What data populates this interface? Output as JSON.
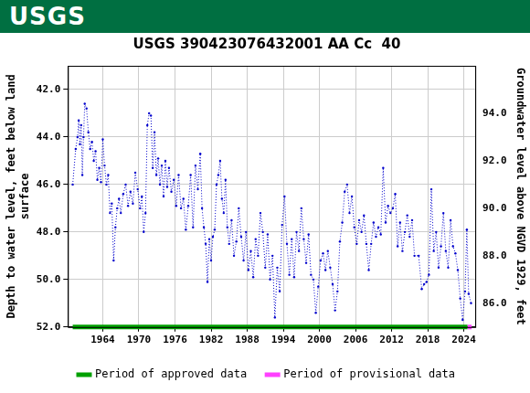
{
  "header": {
    "text": "USGS"
  },
  "chart_data": {
    "type": "line",
    "title": "USGS 390423076432001 AA Cc  40",
    "ylabel": [
      "Depth to water level, feet below land",
      "surface"
    ],
    "y2label": "Groundwater level above NGVD 1929, feet",
    "xlim": [
      1958.2,
      2025.9
    ],
    "xticks": [
      1964,
      1970,
      1976,
      1982,
      1988,
      1994,
      2000,
      2006,
      2012,
      2018,
      2024
    ],
    "ylim": [
      52,
      41
    ],
    "yticks": [
      {
        "value": 42,
        "label": "42.0"
      },
      {
        "value": 44,
        "label": "44.0"
      },
      {
        "value": 46,
        "label": "46.0"
      },
      {
        "value": 48,
        "label": "48.0"
      },
      {
        "value": 50,
        "label": "50.0"
      },
      {
        "value": 52,
        "label": "52.0"
      }
    ],
    "y2lim": [
      85,
      96
    ],
    "y2ticks": [
      {
        "value": 86,
        "label": "86.0"
      },
      {
        "value": 88,
        "label": "88.0"
      },
      {
        "value": 90,
        "label": "90.0"
      },
      {
        "value": 92,
        "label": "92.0"
      },
      {
        "value": 94,
        "label": "94.0"
      }
    ],
    "grid": true,
    "legend": "bottom",
    "series": [
      {
        "color": "#0000cc",
        "marker": "point",
        "line_style": "dotted",
        "x": [
          1959.0,
          1959.5,
          1959.8,
          1960.0,
          1960.2,
          1960.4,
          1960.6,
          1960.8,
          1961.0,
          1961.3,
          1961.6,
          1961.9,
          1962.2,
          1962.5,
          1962.8,
          1963.1,
          1963.4,
          1963.7,
          1964.0,
          1964.3,
          1964.6,
          1964.9,
          1965.2,
          1965.5,
          1965.8,
          1966.1,
          1966.4,
          1966.7,
          1967.0,
          1967.4,
          1967.8,
          1968.2,
          1968.6,
          1969.0,
          1969.4,
          1969.8,
          1970.2,
          1970.5,
          1970.8,
          1971.1,
          1971.4,
          1971.7,
          1972.0,
          1972.3,
          1972.6,
          1972.9,
          1973.2,
          1973.5,
          1973.8,
          1974.1,
          1974.4,
          1974.7,
          1975.0,
          1975.4,
          1975.8,
          1976.2,
          1976.6,
          1977.0,
          1977.4,
          1977.8,
          1978.2,
          1978.6,
          1979.0,
          1979.4,
          1979.8,
          1980.2,
          1980.5,
          1980.8,
          1981.1,
          1981.4,
          1981.7,
          1982.0,
          1982.3,
          1982.6,
          1982.9,
          1983.2,
          1983.5,
          1983.8,
          1984.1,
          1984.4,
          1984.7,
          1985.0,
          1985.4,
          1985.8,
          1986.2,
          1986.6,
          1987.0,
          1987.4,
          1987.8,
          1988.2,
          1988.6,
          1989.0,
          1989.4,
          1989.8,
          1990.2,
          1990.6,
          1991.0,
          1991.4,
          1991.8,
          1992.2,
          1992.6,
          1993.0,
          1993.4,
          1993.8,
          1994.2,
          1994.6,
          1995.0,
          1995.4,
          1995.8,
          1996.2,
          1996.6,
          1997.0,
          1997.4,
          1997.8,
          1998.2,
          1998.6,
          1999.0,
          1999.4,
          1999.8,
          2000.2,
          2000.6,
          2001.0,
          2001.4,
          2001.8,
          2002.2,
          2002.6,
          2003.0,
          2003.4,
          2003.8,
          2004.2,
          2004.6,
          2005.0,
          2005.4,
          2005.8,
          2006.2,
          2006.6,
          2007.0,
          2007.4,
          2007.8,
          2008.2,
          2008.6,
          2009.0,
          2009.4,
          2009.8,
          2010.2,
          2010.6,
          2011.0,
          2011.4,
          2011.8,
          2012.2,
          2012.6,
          2013.0,
          2013.4,
          2013.8,
          2014.2,
          2014.6,
          2015.0,
          2015.4,
          2015.8,
          2016.5,
          2017.0,
          2017.4,
          2017.8,
          2018.2,
          2018.6,
          2019.0,
          2019.4,
          2019.8,
          2020.2,
          2020.6,
          2021.0,
          2021.4,
          2021.8,
          2022.2,
          2022.6,
          2023.0,
          2023.4,
          2023.8,
          2024.2,
          2024.5,
          2024.8,
          2025.2
        ],
        "values": [
          46.0,
          44.5,
          44.0,
          43.3,
          44.3,
          43.5,
          45.6,
          44.0,
          42.6,
          42.8,
          43.8,
          44.5,
          44.2,
          45.0,
          44.6,
          45.8,
          45.3,
          45.9,
          44.1,
          45.2,
          46.0,
          45.6,
          47.2,
          46.8,
          49.2,
          47.8,
          47.0,
          46.6,
          47.2,
          46.4,
          46.0,
          46.9,
          46.3,
          46.8,
          45.5,
          46.2,
          47.0,
          46.5,
          48.0,
          47.2,
          43.5,
          43.0,
          43.1,
          45.3,
          43.8,
          45.6,
          44.9,
          46.0,
          45.2,
          46.5,
          45.0,
          46.1,
          45.3,
          46.3,
          45.8,
          46.9,
          45.6,
          47.0,
          46.6,
          47.9,
          46.9,
          45.6,
          47.8,
          45.2,
          46.2,
          44.7,
          47.0,
          47.8,
          48.5,
          50.1,
          48.3,
          49.2,
          48.2,
          47.9,
          46.0,
          45.6,
          45.0,
          46.6,
          47.2,
          45.8,
          47.8,
          48.5,
          47.5,
          49.0,
          48.4,
          47.0,
          48.2,
          49.2,
          48.0,
          49.6,
          48.8,
          49.9,
          48.3,
          49.0,
          47.2,
          48.0,
          49.5,
          48.1,
          50.0,
          49.0,
          51.6,
          49.5,
          50.5,
          47.7,
          46.5,
          48.5,
          49.8,
          48.3,
          49.9,
          48.0,
          48.8,
          47.0,
          48.3,
          49.3,
          48.1,
          49.8,
          50.0,
          51.4,
          50.3,
          49.2,
          48.9,
          49.6,
          48.8,
          49.5,
          50.2,
          51.3,
          50.5,
          48.4,
          47.6,
          46.3,
          46.0,
          47.2,
          46.5,
          47.8,
          48.5,
          47.5,
          48.0,
          47.3,
          48.5,
          49.6,
          48.5,
          47.6,
          48.2,
          47.8,
          48.1,
          45.3,
          47.6,
          46.9,
          47.2,
          47.0,
          46.4,
          48.6,
          47.6,
          48.8,
          48.0,
          47.3,
          48.2,
          47.5,
          49.0,
          49.0,
          50.4,
          50.2,
          50.1,
          49.8,
          46.2,
          48.8,
          48.0,
          49.5,
          48.6,
          47.2,
          48.8,
          49.5,
          47.5,
          48.6,
          48.9,
          49.6,
          50.8,
          51.7,
          50.5,
          47.9,
          50.6,
          51.0
        ]
      }
    ],
    "periods": [
      {
        "name": "Period of approved data",
        "color": "#00a000",
        "x": [
          1959.0,
          2024.6
        ]
      },
      {
        "name": "Period of provisional data",
        "color": "#ff40ff",
        "x": [
          2024.6,
          2025.3
        ]
      }
    ]
  }
}
